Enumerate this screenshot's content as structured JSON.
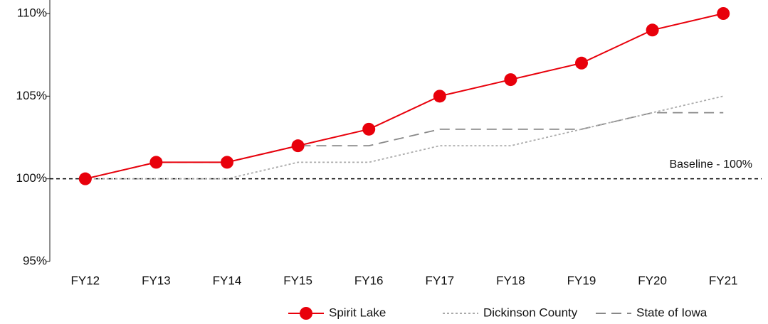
{
  "chart_data": {
    "type": "line",
    "categories": [
      "FY12",
      "FY13",
      "FY14",
      "FY15",
      "FY16",
      "FY17",
      "FY18",
      "FY19",
      "FY20",
      "FY21"
    ],
    "series": [
      {
        "name": "Spirit Lake",
        "color": "#e8000b",
        "style": "solid",
        "marker": true,
        "values": [
          100,
          101,
          101,
          102,
          103,
          105,
          106,
          107,
          109,
          110
        ]
      },
      {
        "name": "Dickinson County",
        "color": "#aaaaaa",
        "style": "dotted",
        "marker": false,
        "values": [
          100,
          100,
          100,
          101,
          101,
          102,
          102,
          103,
          104,
          105
        ]
      },
      {
        "name": "State of Iowa",
        "color": "#888888",
        "style": "dashed",
        "marker": false,
        "values": [
          100,
          101,
          101,
          102,
          102,
          103,
          103,
          103,
          104,
          104
        ]
      }
    ],
    "ylim": [
      95,
      110
    ],
    "yticks": [
      {
        "value": 95,
        "label": "95%"
      },
      {
        "value": 100,
        "label": "100%"
      },
      {
        "value": 105,
        "label": "105%"
      },
      {
        "value": 110,
        "label": "110%"
      }
    ],
    "baseline": {
      "value": 100,
      "label": "Baseline - 100%"
    },
    "legend": "bottom"
  }
}
